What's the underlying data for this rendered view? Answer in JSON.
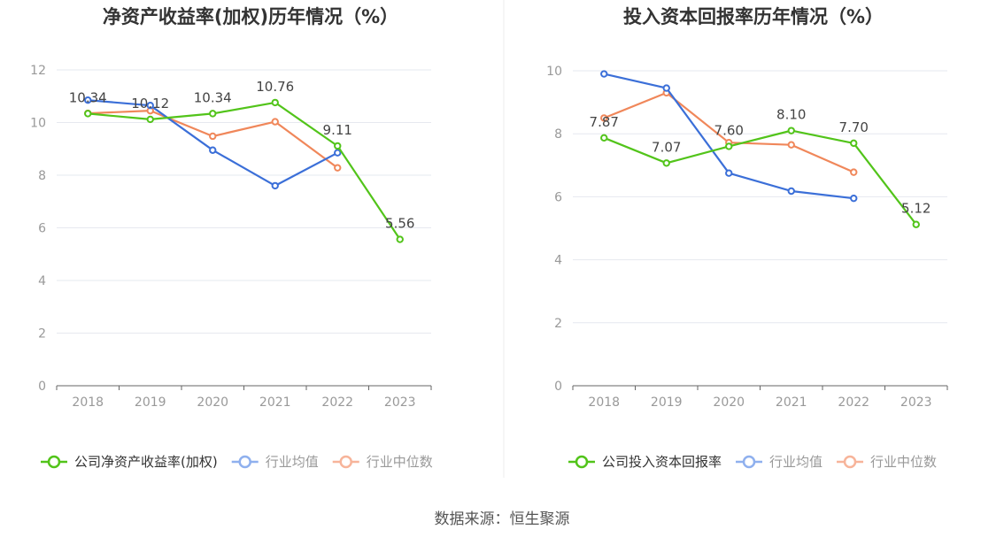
{
  "source_label": "数据来源：恒生聚源",
  "colors": {
    "company": "#52c41a",
    "industry_avg": "#3b6fd8",
    "industry_median": "#f0875a",
    "legend_avg": "#8fb0ee",
    "legend_median": "#f7b49a",
    "axis": "#666666",
    "tick": "#999999",
    "grid": "#e6e8ef",
    "title": "#333333"
  },
  "chart_data": [
    {
      "type": "line",
      "title": "净资产收益率(加权)历年情况（%）",
      "categories": [
        "2018",
        "2019",
        "2020",
        "2021",
        "2022",
        "2023"
      ],
      "ylim": [
        0,
        12
      ],
      "yticks": [
        "0",
        "2",
        "4",
        "6",
        "8",
        "10",
        "12"
      ],
      "grid": true,
      "legend_position": "bottom",
      "series": [
        {
          "key": "company",
          "name": "公司净资产收益率(加权)",
          "values": [
            10.34,
            10.12,
            10.34,
            10.76,
            9.11,
            5.56
          ],
          "labels": [
            "10.34",
            "10.12",
            "10.34",
            "10.76",
            "9.11",
            "5.56"
          ]
        },
        {
          "key": "industry_avg",
          "name": "行业均值",
          "values": [
            10.85,
            10.65,
            8.95,
            7.6,
            8.85,
            null
          ]
        },
        {
          "key": "industry_median",
          "name": "行业中位数",
          "values": [
            10.35,
            10.45,
            9.48,
            10.03,
            8.28,
            null
          ]
        }
      ]
    },
    {
      "type": "line",
      "title": "投入资本回报率历年情况（%）",
      "categories": [
        "2018",
        "2019",
        "2020",
        "2021",
        "2022",
        "2023"
      ],
      "ylim": [
        0,
        10
      ],
      "yticks": [
        "0",
        "2",
        "4",
        "6",
        "8",
        "10"
      ],
      "grid": true,
      "legend_position": "bottom",
      "series": [
        {
          "key": "company",
          "name": "公司投入资本回报率",
          "values": [
            7.87,
            7.07,
            7.6,
            8.1,
            7.7,
            5.12
          ],
          "labels": [
            "7.87",
            "7.07",
            "7.60",
            "8.10",
            "7.70",
            "5.12"
          ]
        },
        {
          "key": "industry_avg",
          "name": "行业均值",
          "values": [
            9.9,
            9.45,
            6.75,
            6.18,
            5.95,
            null
          ]
        },
        {
          "key": "industry_median",
          "name": "行业中位数",
          "values": [
            8.5,
            9.3,
            7.72,
            7.65,
            6.78,
            null
          ]
        }
      ]
    }
  ]
}
